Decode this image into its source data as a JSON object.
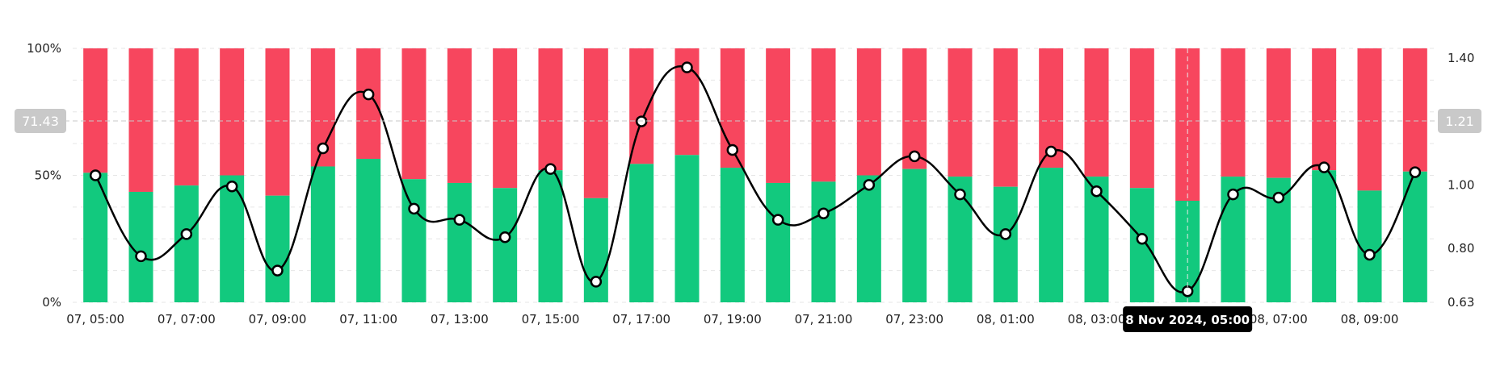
{
  "chart_data": {
    "type": "bar",
    "x": [
      "07, 05:00",
      "07, 06:00",
      "07, 07:00",
      "07, 08:00",
      "07, 09:00",
      "07, 10:00",
      "07, 11:00",
      "07, 12:00",
      "07, 13:00",
      "07, 14:00",
      "07, 15:00",
      "07, 16:00",
      "07, 17:00",
      "07, 18:00",
      "07, 19:00",
      "07, 20:00",
      "07, 21:00",
      "07, 22:00",
      "07, 23:00",
      "08, 00:00",
      "08, 01:00",
      "08, 02:00",
      "08, 03:00",
      "08, 04:00",
      "08, 05:00",
      "08, 06:00",
      "08, 07:00",
      "08, 08:00",
      "08, 09:00",
      "08, 10:00"
    ],
    "x_tick_labels": [
      "07, 05:00",
      "07, 07:00",
      "07, 09:00",
      "07, 11:00",
      "07, 13:00",
      "07, 15:00",
      "07, 17:00",
      "07, 19:00",
      "07, 21:00",
      "07, 23:00",
      "08, 01:00",
      "08, 03:00",
      "",
      "08, 07:00",
      "08, 09:00"
    ],
    "left_axis": {
      "ticks": [
        "100%",
        "50%",
        "0%"
      ],
      "ylim": [
        0,
        100
      ]
    },
    "right_axis": {
      "ticks": [
        "1.40",
        "1.20",
        "1.00",
        "0.80",
        "0.63"
      ],
      "ylim": [
        0.63,
        1.43
      ]
    },
    "series": [
      {
        "role": "long_pct_bars",
        "color": "#12c97e",
        "values": [
          51,
          43.5,
          46,
          50,
          42,
          53.5,
          56.5,
          48.5,
          47,
          45,
          52,
          41,
          54.5,
          58,
          53,
          47,
          47.5,
          50,
          52.5,
          49.5,
          45.5,
          53,
          49.5,
          45,
          40,
          49.5,
          49,
          52,
          44,
          51.5
        ]
      },
      {
        "role": "short_pct_bars",
        "color": "#f7465e"
      },
      {
        "role": "ratio_line",
        "color": "#000000",
        "values": [
          1.03,
          0.775,
          0.845,
          0.995,
          0.73,
          1.115,
          1.285,
          0.925,
          0.89,
          0.835,
          1.05,
          0.695,
          1.2,
          1.37,
          1.11,
          0.89,
          0.91,
          1.0,
          1.09,
          0.97,
          0.845,
          1.105,
          0.98,
          0.83,
          0.665,
          0.97,
          0.96,
          1.055,
          0.78,
          1.04
        ]
      }
    ],
    "crosshair": {
      "left_value": "71.43",
      "right_value": "1.21",
      "index": 24,
      "tooltip": "8 Nov 2024, 05:00"
    },
    "grid": true
  }
}
